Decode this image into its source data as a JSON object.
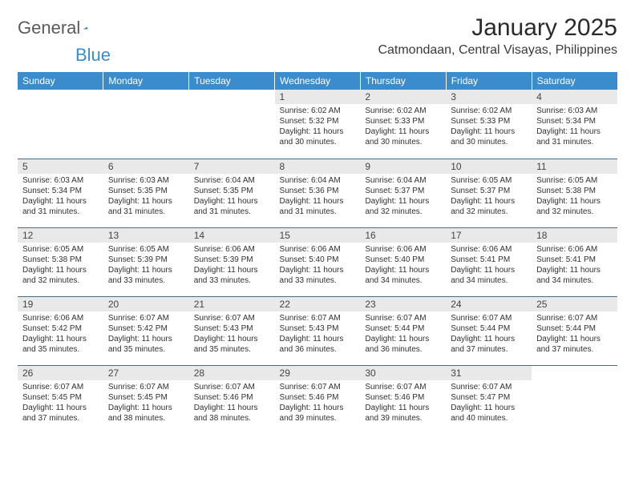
{
  "logo": {
    "general": "General",
    "blue": "Blue"
  },
  "title": "January 2025",
  "location": "Catmondaan, Central Visayas, Philippines",
  "colors": {
    "header_bg": "#3a8ccc",
    "header_text": "#ffffff",
    "daynum_bg": "#e9e9e9",
    "border": "#4a6a84",
    "page_bg": "#ffffff",
    "text": "#202020",
    "logo_blue": "#3a8ccc",
    "logo_gray": "#5a5a5a"
  },
  "typography": {
    "title_fontsize": 30,
    "location_fontsize": 16,
    "dayheader_fontsize": 12,
    "daynum_fontsize": 12,
    "cell_fontsize": 10
  },
  "day_headers": [
    "Sunday",
    "Monday",
    "Tuesday",
    "Wednesday",
    "Thursday",
    "Friday",
    "Saturday"
  ],
  "weeks": [
    [
      {
        "n": "",
        "sr": "",
        "ss": "",
        "dl": ""
      },
      {
        "n": "",
        "sr": "",
        "ss": "",
        "dl": ""
      },
      {
        "n": "",
        "sr": "",
        "ss": "",
        "dl": ""
      },
      {
        "n": "1",
        "sr": "Sunrise: 6:02 AM",
        "ss": "Sunset: 5:32 PM",
        "dl": "Daylight: 11 hours and 30 minutes."
      },
      {
        "n": "2",
        "sr": "Sunrise: 6:02 AM",
        "ss": "Sunset: 5:33 PM",
        "dl": "Daylight: 11 hours and 30 minutes."
      },
      {
        "n": "3",
        "sr": "Sunrise: 6:02 AM",
        "ss": "Sunset: 5:33 PM",
        "dl": "Daylight: 11 hours and 30 minutes."
      },
      {
        "n": "4",
        "sr": "Sunrise: 6:03 AM",
        "ss": "Sunset: 5:34 PM",
        "dl": "Daylight: 11 hours and 31 minutes."
      }
    ],
    [
      {
        "n": "5",
        "sr": "Sunrise: 6:03 AM",
        "ss": "Sunset: 5:34 PM",
        "dl": "Daylight: 11 hours and 31 minutes."
      },
      {
        "n": "6",
        "sr": "Sunrise: 6:03 AM",
        "ss": "Sunset: 5:35 PM",
        "dl": "Daylight: 11 hours and 31 minutes."
      },
      {
        "n": "7",
        "sr": "Sunrise: 6:04 AM",
        "ss": "Sunset: 5:35 PM",
        "dl": "Daylight: 11 hours and 31 minutes."
      },
      {
        "n": "8",
        "sr": "Sunrise: 6:04 AM",
        "ss": "Sunset: 5:36 PM",
        "dl": "Daylight: 11 hours and 31 minutes."
      },
      {
        "n": "9",
        "sr": "Sunrise: 6:04 AM",
        "ss": "Sunset: 5:37 PM",
        "dl": "Daylight: 11 hours and 32 minutes."
      },
      {
        "n": "10",
        "sr": "Sunrise: 6:05 AM",
        "ss": "Sunset: 5:37 PM",
        "dl": "Daylight: 11 hours and 32 minutes."
      },
      {
        "n": "11",
        "sr": "Sunrise: 6:05 AM",
        "ss": "Sunset: 5:38 PM",
        "dl": "Daylight: 11 hours and 32 minutes."
      }
    ],
    [
      {
        "n": "12",
        "sr": "Sunrise: 6:05 AM",
        "ss": "Sunset: 5:38 PM",
        "dl": "Daylight: 11 hours and 32 minutes."
      },
      {
        "n": "13",
        "sr": "Sunrise: 6:05 AM",
        "ss": "Sunset: 5:39 PM",
        "dl": "Daylight: 11 hours and 33 minutes."
      },
      {
        "n": "14",
        "sr": "Sunrise: 6:06 AM",
        "ss": "Sunset: 5:39 PM",
        "dl": "Daylight: 11 hours and 33 minutes."
      },
      {
        "n": "15",
        "sr": "Sunrise: 6:06 AM",
        "ss": "Sunset: 5:40 PM",
        "dl": "Daylight: 11 hours and 33 minutes."
      },
      {
        "n": "16",
        "sr": "Sunrise: 6:06 AM",
        "ss": "Sunset: 5:40 PM",
        "dl": "Daylight: 11 hours and 34 minutes."
      },
      {
        "n": "17",
        "sr": "Sunrise: 6:06 AM",
        "ss": "Sunset: 5:41 PM",
        "dl": "Daylight: 11 hours and 34 minutes."
      },
      {
        "n": "18",
        "sr": "Sunrise: 6:06 AM",
        "ss": "Sunset: 5:41 PM",
        "dl": "Daylight: 11 hours and 34 minutes."
      }
    ],
    [
      {
        "n": "19",
        "sr": "Sunrise: 6:06 AM",
        "ss": "Sunset: 5:42 PM",
        "dl": "Daylight: 11 hours and 35 minutes."
      },
      {
        "n": "20",
        "sr": "Sunrise: 6:07 AM",
        "ss": "Sunset: 5:42 PM",
        "dl": "Daylight: 11 hours and 35 minutes."
      },
      {
        "n": "21",
        "sr": "Sunrise: 6:07 AM",
        "ss": "Sunset: 5:43 PM",
        "dl": "Daylight: 11 hours and 35 minutes."
      },
      {
        "n": "22",
        "sr": "Sunrise: 6:07 AM",
        "ss": "Sunset: 5:43 PM",
        "dl": "Daylight: 11 hours and 36 minutes."
      },
      {
        "n": "23",
        "sr": "Sunrise: 6:07 AM",
        "ss": "Sunset: 5:44 PM",
        "dl": "Daylight: 11 hours and 36 minutes."
      },
      {
        "n": "24",
        "sr": "Sunrise: 6:07 AM",
        "ss": "Sunset: 5:44 PM",
        "dl": "Daylight: 11 hours and 37 minutes."
      },
      {
        "n": "25",
        "sr": "Sunrise: 6:07 AM",
        "ss": "Sunset: 5:44 PM",
        "dl": "Daylight: 11 hours and 37 minutes."
      }
    ],
    [
      {
        "n": "26",
        "sr": "Sunrise: 6:07 AM",
        "ss": "Sunset: 5:45 PM",
        "dl": "Daylight: 11 hours and 37 minutes."
      },
      {
        "n": "27",
        "sr": "Sunrise: 6:07 AM",
        "ss": "Sunset: 5:45 PM",
        "dl": "Daylight: 11 hours and 38 minutes."
      },
      {
        "n": "28",
        "sr": "Sunrise: 6:07 AM",
        "ss": "Sunset: 5:46 PM",
        "dl": "Daylight: 11 hours and 38 minutes."
      },
      {
        "n": "29",
        "sr": "Sunrise: 6:07 AM",
        "ss": "Sunset: 5:46 PM",
        "dl": "Daylight: 11 hours and 39 minutes."
      },
      {
        "n": "30",
        "sr": "Sunrise: 6:07 AM",
        "ss": "Sunset: 5:46 PM",
        "dl": "Daylight: 11 hours and 39 minutes."
      },
      {
        "n": "31",
        "sr": "Sunrise: 6:07 AM",
        "ss": "Sunset: 5:47 PM",
        "dl": "Daylight: 11 hours and 40 minutes."
      },
      {
        "n": "",
        "sr": "",
        "ss": "",
        "dl": ""
      }
    ]
  ]
}
